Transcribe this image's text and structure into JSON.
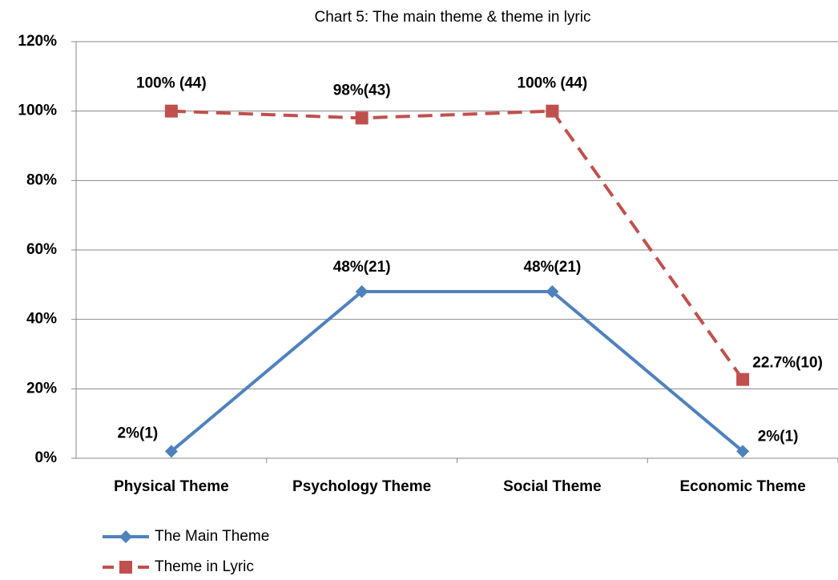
{
  "chart_data": {
    "type": "line",
    "title": "Chart 5: The main theme & theme in lyric",
    "categories": [
      "Physical Theme",
      "Psychology Theme",
      "Social Theme",
      "Economic Theme"
    ],
    "series": [
      {
        "name": "The Main Theme",
        "color": "#4f81bd",
        "dash": false,
        "marker": "diamond",
        "values": [
          2,
          48,
          48,
          2
        ],
        "value_labels": [
          "2%(1)",
          "48%(21)",
          "48%(21)",
          "2%(1)"
        ]
      },
      {
        "name": "Theme in Lyric",
        "color": "#c0504d",
        "dash": true,
        "marker": "square",
        "values": [
          100,
          98,
          100,
          22.7
        ],
        "value_labels": [
          "100% (44)",
          "98%(43)",
          "100% (44)",
          "22.7%(10)"
        ]
      }
    ],
    "ylim": [
      0,
      120
    ],
    "yticks": [
      {
        "value": 0,
        "label": "0%"
      },
      {
        "value": 20,
        "label": "20%"
      },
      {
        "value": 40,
        "label": "40%"
      },
      {
        "value": 60,
        "label": "60%"
      },
      {
        "value": 80,
        "label": "80%"
      },
      {
        "value": 100,
        "label": "100%"
      },
      {
        "value": 120,
        "label": "120%"
      }
    ],
    "grid": true
  }
}
